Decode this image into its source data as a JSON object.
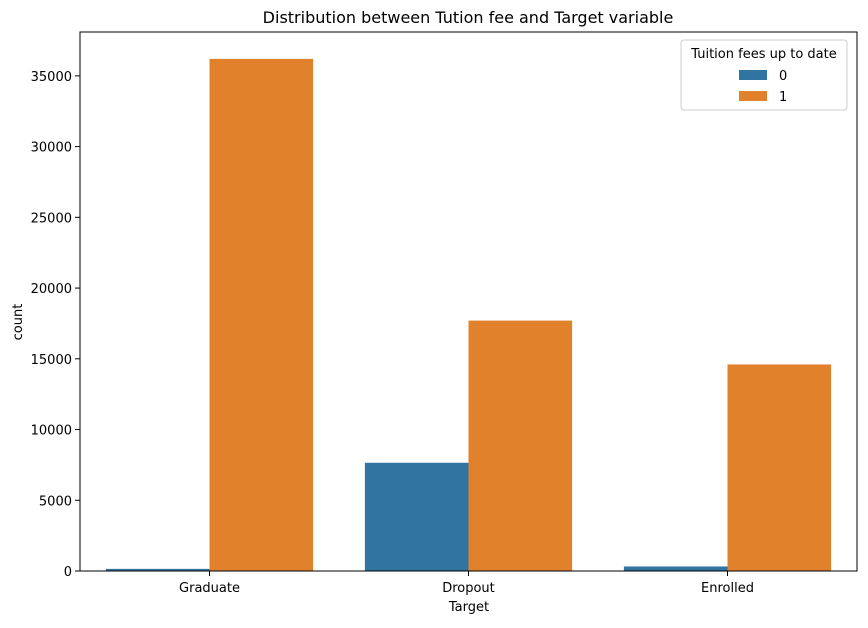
{
  "chart_data": {
    "type": "bar",
    "title": "Distribution between Tution fee and Target variable",
    "xlabel": "Target",
    "ylabel": "count",
    "categories": [
      "Graduate",
      "Dropout",
      "Enrolled"
    ],
    "series": [
      {
        "name": "0",
        "color": "#3274a1",
        "values": [
          150,
          7650,
          320
        ]
      },
      {
        "name": "1",
        "color": "#e1812c",
        "values": [
          36200,
          17700,
          14600
        ]
      }
    ],
    "ylim": [
      0,
      38100
    ],
    "yticks": [
      0,
      5000,
      10000,
      15000,
      20000,
      25000,
      30000,
      35000
    ],
    "legend": {
      "title": "Tuition fees up to date",
      "position": "top-right"
    },
    "grid": false
  }
}
